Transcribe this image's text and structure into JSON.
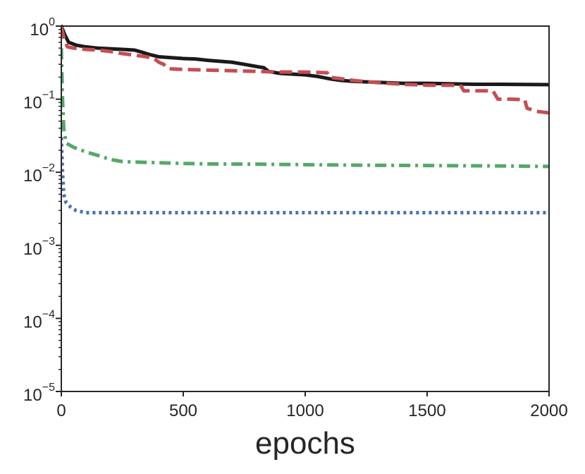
{
  "chart_data": {
    "type": "line",
    "title": "",
    "xlabel": "epochs",
    "ylabel": "",
    "xlim": [
      0,
      2000
    ],
    "ylim": [
      1e-05,
      1
    ],
    "yscale": "log",
    "grid": false,
    "legend": "none",
    "x_ticks": [
      {
        "value": 0,
        "label": "0"
      },
      {
        "value": 500,
        "label": "500"
      },
      {
        "value": 1000,
        "label": "1000"
      },
      {
        "value": 1500,
        "label": "1500"
      },
      {
        "value": 2000,
        "label": "2000"
      }
    ],
    "y_ticks": [
      {
        "value": 1,
        "base": "10",
        "exp": "0"
      },
      {
        "value": 0.1,
        "base": "10",
        "exp": "−1"
      },
      {
        "value": 0.01,
        "base": "10",
        "exp": "−2"
      },
      {
        "value": 0.001,
        "base": "10",
        "exp": "−3"
      },
      {
        "value": 0.0001,
        "base": "10",
        "exp": "−4"
      },
      {
        "value": 1e-05,
        "base": "10",
        "exp": "−5"
      }
    ],
    "series": [
      {
        "color": "#1a1a1a",
        "style": "solid",
        "points": [
          [
            0,
            1.0
          ],
          [
            15,
            0.75
          ],
          [
            30,
            0.6
          ],
          [
            60,
            0.55
          ],
          [
            100,
            0.52
          ],
          [
            150,
            0.5
          ],
          [
            200,
            0.49
          ],
          [
            250,
            0.48
          ],
          [
            300,
            0.47
          ],
          [
            330,
            0.44
          ],
          [
            360,
            0.41
          ],
          [
            400,
            0.38
          ],
          [
            450,
            0.37
          ],
          [
            500,
            0.36
          ],
          [
            550,
            0.355
          ],
          [
            600,
            0.34
          ],
          [
            650,
            0.33
          ],
          [
            700,
            0.32
          ],
          [
            750,
            0.3
          ],
          [
            800,
            0.28
          ],
          [
            830,
            0.27
          ],
          [
            850,
            0.24
          ],
          [
            880,
            0.23
          ],
          [
            900,
            0.225
          ],
          [
            950,
            0.22
          ],
          [
            1000,
            0.215
          ],
          [
            1050,
            0.205
          ],
          [
            1100,
            0.19
          ],
          [
            1150,
            0.18
          ],
          [
            1200,
            0.175
          ],
          [
            1300,
            0.17
          ],
          [
            1400,
            0.165
          ],
          [
            1500,
            0.165
          ],
          [
            1600,
            0.162
          ],
          [
            1700,
            0.16
          ],
          [
            1800,
            0.16
          ],
          [
            1900,
            0.159
          ],
          [
            2000,
            0.158
          ]
        ]
      },
      {
        "color": "#c44e52",
        "style": "dashed",
        "points": [
          [
            0,
            1.0
          ],
          [
            10,
            0.7
          ],
          [
            25,
            0.52
          ],
          [
            50,
            0.5
          ],
          [
            100,
            0.48
          ],
          [
            150,
            0.47
          ],
          [
            200,
            0.45
          ],
          [
            250,
            0.42
          ],
          [
            300,
            0.4
          ],
          [
            350,
            0.38
          ],
          [
            380,
            0.36
          ],
          [
            400,
            0.32
          ],
          [
            420,
            0.3
          ],
          [
            430,
            0.27
          ],
          [
            450,
            0.26
          ],
          [
            500,
            0.255
          ],
          [
            600,
            0.25
          ],
          [
            700,
            0.245
          ],
          [
            800,
            0.24
          ],
          [
            900,
            0.235
          ],
          [
            1000,
            0.235
          ],
          [
            1090,
            0.23
          ],
          [
            1100,
            0.2
          ],
          [
            1150,
            0.19
          ],
          [
            1200,
            0.18
          ],
          [
            1300,
            0.168
          ],
          [
            1400,
            0.16
          ],
          [
            1500,
            0.155
          ],
          [
            1600,
            0.155
          ],
          [
            1640,
            0.15
          ],
          [
            1650,
            0.13
          ],
          [
            1700,
            0.13
          ],
          [
            1770,
            0.13
          ],
          [
            1790,
            0.1
          ],
          [
            1850,
            0.1
          ],
          [
            1900,
            0.098
          ],
          [
            1910,
            0.075
          ],
          [
            1950,
            0.068
          ],
          [
            2000,
            0.065
          ]
        ]
      },
      {
        "color": "#55a868",
        "style": "dashdot",
        "points": [
          [
            0,
            0.5
          ],
          [
            5,
            0.1
          ],
          [
            10,
            0.04
          ],
          [
            20,
            0.025
          ],
          [
            50,
            0.022
          ],
          [
            100,
            0.019
          ],
          [
            150,
            0.017
          ],
          [
            200,
            0.015
          ],
          [
            250,
            0.014
          ],
          [
            300,
            0.0138
          ],
          [
            400,
            0.0135
          ],
          [
            500,
            0.0132
          ],
          [
            600,
            0.013
          ],
          [
            800,
            0.0129
          ],
          [
            1000,
            0.0127
          ],
          [
            1200,
            0.0125
          ],
          [
            1400,
            0.0124
          ],
          [
            1600,
            0.0123
          ],
          [
            1800,
            0.0122
          ],
          [
            2000,
            0.012
          ]
        ]
      },
      {
        "color": "#4c72b0",
        "style": "dotted",
        "points": [
          [
            0,
            0.03
          ],
          [
            5,
            0.01
          ],
          [
            10,
            0.005
          ],
          [
            20,
            0.0038
          ],
          [
            40,
            0.0033
          ],
          [
            60,
            0.003
          ],
          [
            80,
            0.0029
          ],
          [
            100,
            0.0028
          ],
          [
            200,
            0.0028
          ],
          [
            500,
            0.0028
          ],
          [
            1000,
            0.0028
          ],
          [
            1500,
            0.0028
          ],
          [
            2000,
            0.0028
          ]
        ]
      }
    ]
  }
}
